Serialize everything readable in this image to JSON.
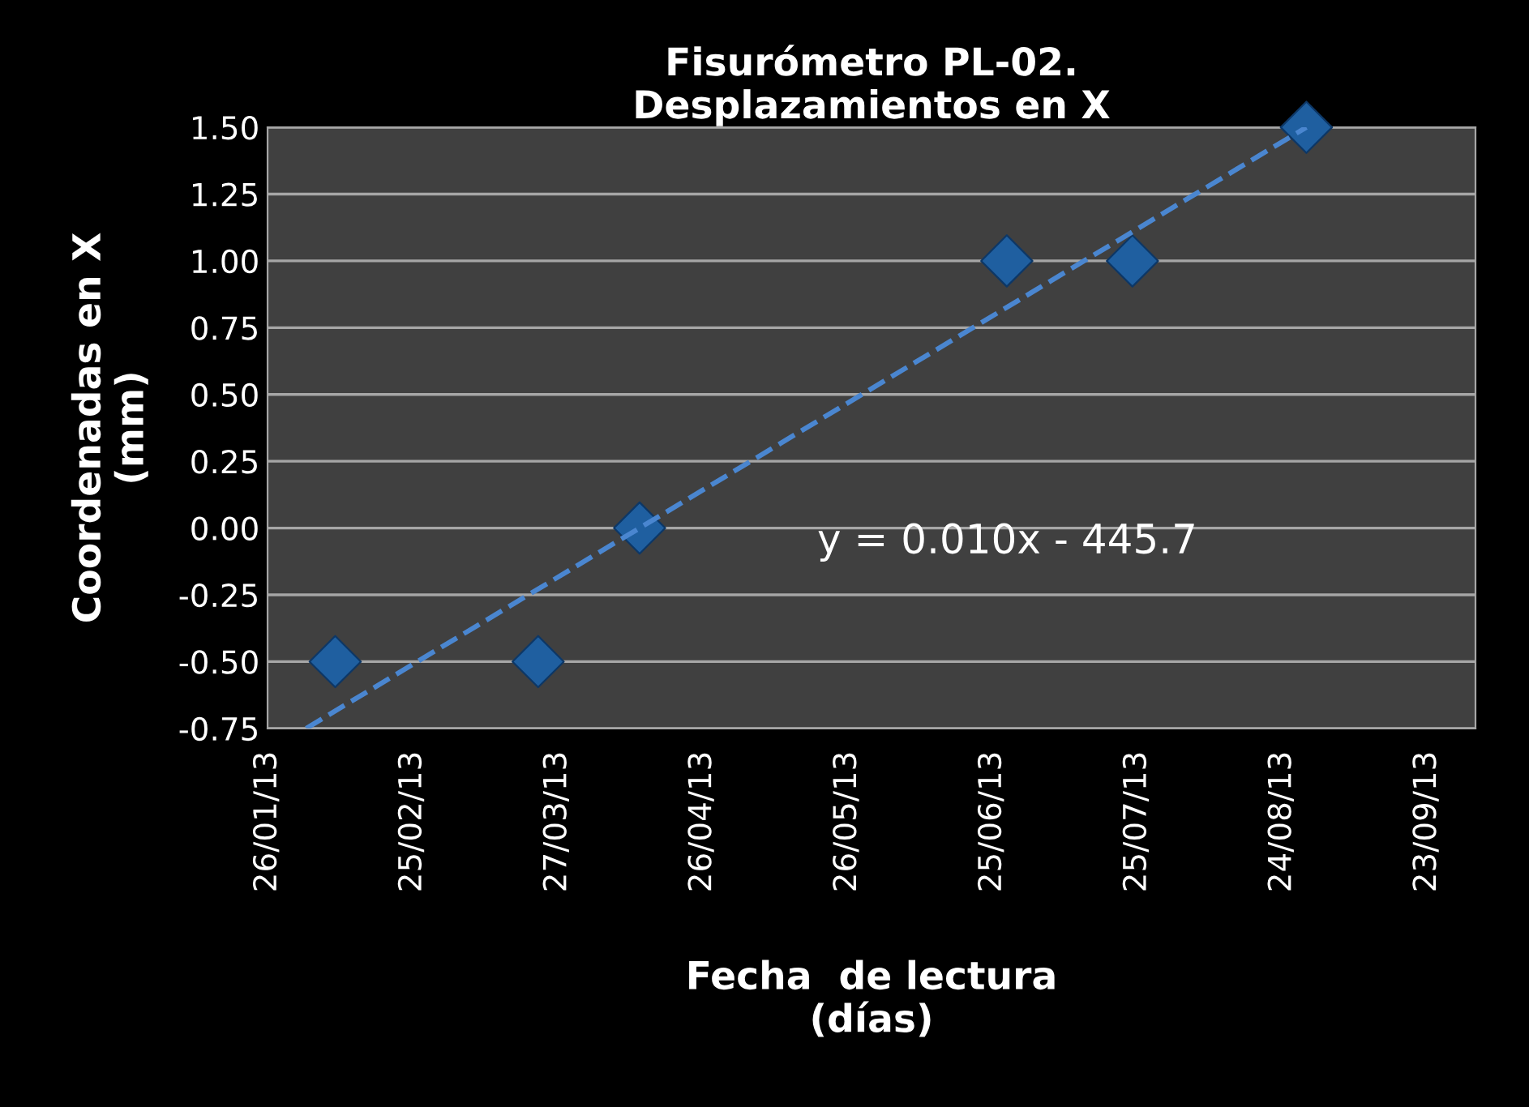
{
  "chart_data": {
    "type": "scatter",
    "title": "Fisurómetro PL-02.\nDesplazamientos en X",
    "xlabel": "Fecha  de lectura\n(días)",
    "ylabel": "Coordenadas en X\n(mm)",
    "annotations": [
      "y = 0.010x - 445.7"
    ],
    "series": [
      {
        "color": "#1f5fa0",
        "marker": "diamond",
        "x": [
          "2013-02-09",
          "2013-03-23",
          "2013-04-13",
          "2013-06-28",
          "2013-07-24",
          "2013-08-29"
        ],
        "values": [
          -0.5,
          -0.5,
          0,
          1.0,
          1.0,
          1.5
        ]
      },
      {
        "type": "line",
        "color": "#4a86d0",
        "line_style": "dashed",
        "marker": "none",
        "x": [
          "2013-02-03",
          "2013-08-29"
        ],
        "values": [
          -0.75,
          1.5
        ]
      }
    ],
    "xlim": [
      "2013-01-26",
      "2013-10-03"
    ],
    "xticks": [
      {
        "value": "2013-01-26",
        "label": "26/01/13"
      },
      {
        "value": "2013-02-25",
        "label": "25/02/13"
      },
      {
        "value": "2013-03-27",
        "label": "27/03/13"
      },
      {
        "value": "2013-04-26",
        "label": "26/04/13"
      },
      {
        "value": "2013-05-26",
        "label": "26/05/13"
      },
      {
        "value": "2013-06-25",
        "label": "25/06/13"
      },
      {
        "value": "2013-07-25",
        "label": "25/07/13"
      },
      {
        "value": "2013-08-24",
        "label": "24/08/13"
      },
      {
        "value": "2013-09-23",
        "label": "23/09/13"
      }
    ],
    "ylim": [
      -0.75,
      1.5
    ],
    "yticks": [
      {
        "value": -0.75,
        "label": "-0.75"
      },
      {
        "value": -0.5,
        "label": "-0.50"
      },
      {
        "value": -0.25,
        "label": "-0.25"
      },
      {
        "value": 0,
        "label": "0.00"
      },
      {
        "value": 0.25,
        "label": "0.25"
      },
      {
        "value": 0.5,
        "label": "0.50"
      },
      {
        "value": 0.75,
        "label": "0.75"
      },
      {
        "value": 1.0,
        "label": "1.00"
      },
      {
        "value": 1.25,
        "label": "1.25"
      },
      {
        "value": 1.5,
        "label": "1.50"
      }
    ],
    "grid": "y",
    "legend": false
  }
}
